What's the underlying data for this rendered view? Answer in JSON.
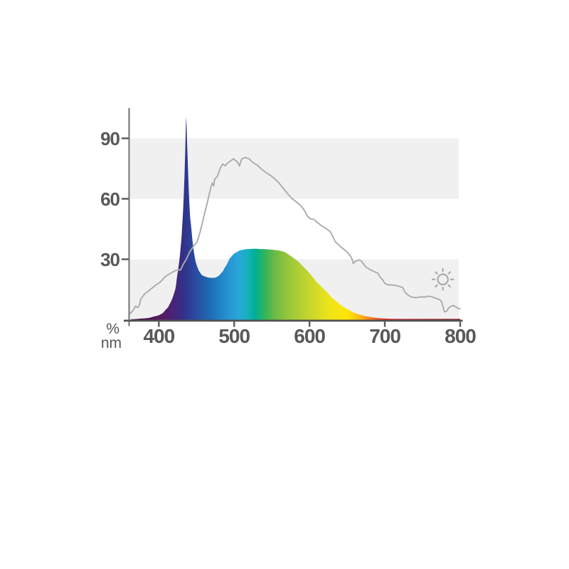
{
  "chart_data": {
    "type": "area",
    "xlabel_unit": "nm",
    "ylabel_unit": "%",
    "x_ticks": [
      400,
      500,
      600,
      700,
      800
    ],
    "y_ticks": [
      90,
      60,
      30
    ],
    "xlim": [
      361,
      800
    ],
    "ylim": [
      0,
      105
    ],
    "grid": "off",
    "grid_bands_pct": [
      [
        60,
        90
      ],
      [
        0,
        30
      ]
    ],
    "band_color": "#f0f0f1",
    "axis_color": "#7a7b7e",
    "baseline_color": "#525254",
    "tick_color": "#58585a",
    "label_color": "#58585a",
    "reference_line_color": "#a9abae",
    "sun_icon_color": "#a9abae",
    "annotations": [
      {
        "type": "sun-icon",
        "nm": 777,
        "pct": 20
      }
    ],
    "gradient_stops": [
      [
        363,
        "#35103f"
      ],
      [
        400,
        "#581a5c"
      ],
      [
        418,
        "#4b2277"
      ],
      [
        432,
        "#333088"
      ],
      [
        448,
        "#2a4a9e"
      ],
      [
        468,
        "#1d6cb5"
      ],
      [
        490,
        "#2491cf"
      ],
      [
        505,
        "#29a5da"
      ],
      [
        517,
        "#16b1c0"
      ],
      [
        528,
        "#00af94"
      ],
      [
        540,
        "#2eb45c"
      ],
      [
        555,
        "#71ba43"
      ],
      [
        575,
        "#9cc93b"
      ],
      [
        600,
        "#c6d62c"
      ],
      [
        625,
        "#ece41a"
      ],
      [
        650,
        "#ffe606"
      ],
      [
        668,
        "#fdb515"
      ],
      [
        680,
        "#f58220"
      ],
      [
        692,
        "#ef4d25"
      ],
      [
        705,
        "#e5232a"
      ],
      [
        725,
        "#c41f26"
      ],
      [
        760,
        "#9c1b1f"
      ],
      [
        800,
        "#7e1418"
      ]
    ],
    "series": [
      {
        "name": "led_spectrum",
        "style": "filled-gradient",
        "points": [
          [
            363,
            0.2
          ],
          [
            368,
            0.3
          ],
          [
            374,
            0.5
          ],
          [
            379,
            0.6
          ],
          [
            383,
            0.7
          ],
          [
            388,
            1.0
          ],
          [
            392,
            1.4
          ],
          [
            396,
            1.8
          ],
          [
            399,
            2.1
          ],
          [
            402,
            2.6
          ],
          [
            405,
            3.2
          ],
          [
            407,
            4.0
          ],
          [
            409,
            4.9
          ],
          [
            412,
            6.0
          ],
          [
            414,
            7.4
          ],
          [
            416,
            8.9
          ],
          [
            418,
            10.6
          ],
          [
            420,
            12.8
          ],
          [
            422,
            15.2
          ],
          [
            423,
            17.8
          ],
          [
            424,
            20.8
          ],
          [
            425.5,
            24.5
          ],
          [
            427,
            28.6
          ],
          [
            428,
            32
          ],
          [
            429,
            36
          ],
          [
            430,
            40.2
          ],
          [
            431,
            46
          ],
          [
            432,
            52.6
          ],
          [
            433,
            61
          ],
          [
            434,
            70.3
          ],
          [
            435,
            83
          ],
          [
            435.8,
            95
          ],
          [
            436.2,
            100.5
          ],
          [
            436.8,
            97
          ],
          [
            437.5,
            88
          ],
          [
            438.5,
            77
          ],
          [
            439.5,
            67
          ],
          [
            440.5,
            58
          ],
          [
            441.5,
            51
          ],
          [
            443,
            45.6
          ],
          [
            444.5,
            40
          ],
          [
            446,
            35
          ],
          [
            447.5,
            31.5
          ],
          [
            449,
            28.6
          ],
          [
            451,
            26.3
          ],
          [
            453,
            24.4
          ],
          [
            455,
            23.2
          ],
          [
            457,
            22.2
          ],
          [
            460,
            21.6
          ],
          [
            463,
            21.2
          ],
          [
            466,
            20.9
          ],
          [
            469,
            20.8
          ],
          [
            472,
            20.8
          ],
          [
            474,
            20.8
          ],
          [
            477,
            21.2
          ],
          [
            480,
            21.9
          ],
          [
            482,
            22.8
          ],
          [
            485,
            24.0
          ],
          [
            487,
            25.5
          ],
          [
            490,
            27.2
          ],
          [
            492,
            28.8
          ],
          [
            494,
            30.4
          ],
          [
            497,
            31.6
          ],
          [
            499,
            32.5
          ],
          [
            502,
            33.3
          ],
          [
            505,
            33.9
          ],
          [
            507,
            34.3
          ],
          [
            510,
            34.6
          ],
          [
            513,
            34.8
          ],
          [
            516,
            35.0
          ],
          [
            520,
            35.1
          ],
          [
            525,
            35.2
          ],
          [
            530,
            35.2
          ],
          [
            534,
            35.1
          ],
          [
            540,
            35.0
          ],
          [
            545,
            34.9
          ],
          [
            548,
            34.8
          ],
          [
            552,
            34.7
          ],
          [
            557,
            34.5
          ],
          [
            562,
            34.1
          ],
          [
            567,
            33.6
          ],
          [
            571,
            32.7
          ],
          [
            576,
            31.4
          ],
          [
            581,
            30.1
          ],
          [
            586,
            28.6
          ],
          [
            590,
            27.0
          ],
          [
            595,
            25.1
          ],
          [
            600,
            23.0
          ],
          [
            605,
            20.8
          ],
          [
            609,
            18.9
          ],
          [
            614,
            17.0
          ],
          [
            619,
            15.2
          ],
          [
            624,
            13.4
          ],
          [
            628,
            11.6
          ],
          [
            633,
            9.9
          ],
          [
            638,
            8.4
          ],
          [
            642,
            7.1
          ],
          [
            647,
            5.9
          ],
          [
            652,
            4.9
          ],
          [
            656,
            4.0
          ],
          [
            661,
            3.2
          ],
          [
            666,
            2.6
          ],
          [
            671,
            2.1
          ],
          [
            675,
            1.7
          ],
          [
            680,
            1.4
          ],
          [
            687,
            1.0
          ],
          [
            694,
            0.7
          ],
          [
            701,
            0.55
          ],
          [
            708,
            0.45
          ],
          [
            723,
            0.4
          ],
          [
            737,
            0.4
          ],
          [
            760,
            0.4
          ],
          [
            780,
            0.4
          ],
          [
            800,
            0.4
          ]
        ]
      },
      {
        "name": "daylight_reference",
        "style": "line",
        "points": [
          [
            361,
            2.8
          ],
          [
            365,
            4.2
          ],
          [
            369,
            6.7
          ],
          [
            372,
            6.0
          ],
          [
            374,
            7.1
          ],
          [
            376,
            10.2
          ],
          [
            381,
            12.7
          ],
          [
            388,
            14.8
          ],
          [
            395,
            16.9
          ],
          [
            402,
            18.7
          ],
          [
            408,
            21.2
          ],
          [
            415,
            22.9
          ],
          [
            422,
            24.4
          ],
          [
            426,
            24.7
          ],
          [
            429,
            24.7
          ],
          [
            432,
            27.2
          ],
          [
            437,
            30.4
          ],
          [
            441,
            33.6
          ],
          [
            446,
            36.4
          ],
          [
            451,
            38.8
          ],
          [
            455,
            43.8
          ],
          [
            458,
            48.4
          ],
          [
            463,
            56.1
          ],
          [
            466,
            60.7
          ],
          [
            469,
            65.7
          ],
          [
            471,
            67.8
          ],
          [
            473,
            66.4
          ],
          [
            474,
            69.6
          ],
          [
            478,
            71.3
          ],
          [
            482,
            75.6
          ],
          [
            485,
            77.3
          ],
          [
            488,
            76.3
          ],
          [
            491,
            77.7
          ],
          [
            495,
            78.7
          ],
          [
            499,
            79.8
          ],
          [
            503,
            78.7
          ],
          [
            506,
            77.3
          ],
          [
            507,
            76.3
          ],
          [
            510,
            79.8
          ],
          [
            515,
            80.5
          ],
          [
            520,
            79.8
          ],
          [
            525,
            78.0
          ],
          [
            531,
            76.6
          ],
          [
            537,
            74.5
          ],
          [
            542,
            73.1
          ],
          [
            548,
            71.7
          ],
          [
            554,
            69.9
          ],
          [
            559,
            68.1
          ],
          [
            565,
            65.3
          ],
          [
            571,
            62.5
          ],
          [
            576,
            60.4
          ],
          [
            582,
            58.6
          ],
          [
            588,
            56.8
          ],
          [
            593,
            54.4
          ],
          [
            597,
            51.5
          ],
          [
            601,
            50.1
          ],
          [
            606,
            49.8
          ],
          [
            610,
            48.4
          ],
          [
            616,
            46.6
          ],
          [
            622,
            45.2
          ],
          [
            627,
            43.8
          ],
          [
            629,
            42.7
          ],
          [
            634,
            38.8
          ],
          [
            639,
            37.1
          ],
          [
            643,
            35.7
          ],
          [
            649,
            33.9
          ],
          [
            654,
            31.8
          ],
          [
            657,
            29.7
          ],
          [
            658,
            27.9
          ],
          [
            661,
            29.0
          ],
          [
            666,
            29.7
          ],
          [
            669,
            29.0
          ],
          [
            675,
            26.1
          ],
          [
            681,
            24.7
          ],
          [
            687,
            23.7
          ],
          [
            691,
            23.0
          ],
          [
            693,
            21.5
          ],
          [
            697,
            19.8
          ],
          [
            700,
            18.0
          ],
          [
            704,
            17.3
          ],
          [
            708,
            17.3
          ],
          [
            714,
            17.0
          ],
          [
            719,
            16.6
          ],
          [
            724,
            15.9
          ],
          [
            726,
            14.1
          ],
          [
            730,
            12.4
          ],
          [
            735,
            11.3
          ],
          [
            741,
            10.9
          ],
          [
            747,
            11.3
          ],
          [
            754,
            11.3
          ],
          [
            758,
            11.7
          ],
          [
            763,
            11.3
          ],
          [
            768,
            10.6
          ],
          [
            773,
            9.9
          ],
          [
            775,
            9.2
          ],
          [
            777,
            6.7
          ],
          [
            779,
            3.9
          ],
          [
            782,
            4.2
          ],
          [
            785,
            6.0
          ],
          [
            788,
            6.7
          ],
          [
            791,
            7.1
          ],
          [
            794,
            6.4
          ],
          [
            797,
            5.7
          ],
          [
            800,
            5.3
          ]
        ]
      }
    ]
  }
}
